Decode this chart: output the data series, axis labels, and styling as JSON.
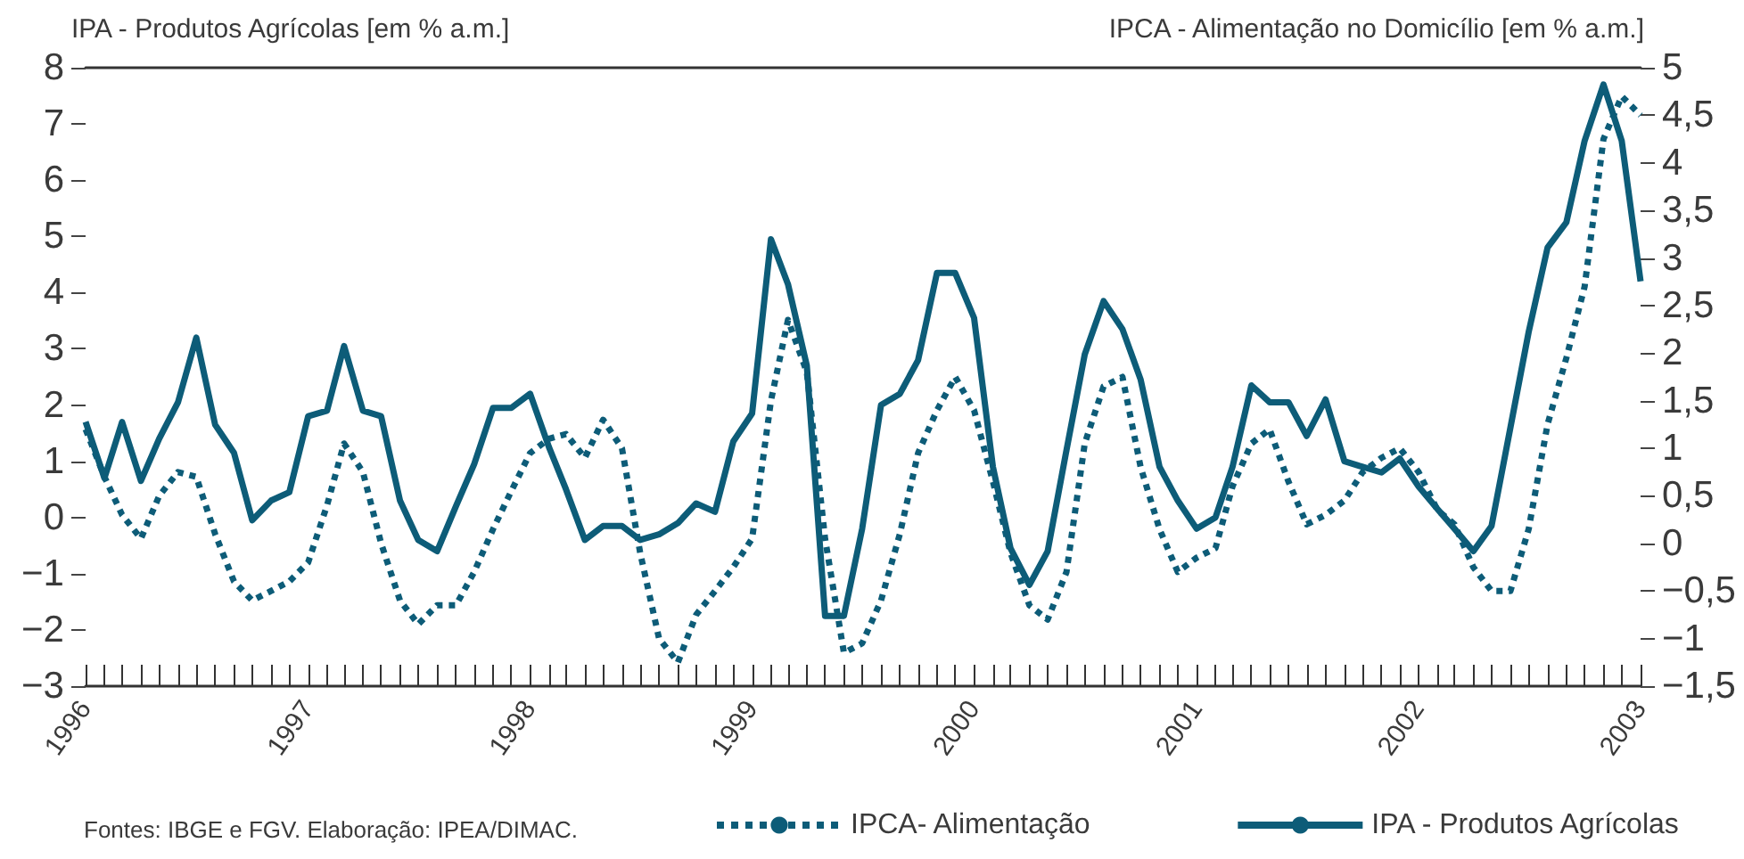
{
  "chart_data": {
    "type": "line",
    "ylabel": "IPA - Produtos Agrícolas [em % a.m.]",
    "y2label": "IPCA - Alimentação no Domicílio [em % a.m.]",
    "annotations": [
      "Fontes: IBGE e FGV. Elaboração: IPEA/DIMAC."
    ],
    "legend": "bottom",
    "marker": "none",
    "x": [
      "1996-01",
      "1996-02",
      "1996-03",
      "1996-04",
      "1996-05",
      "1996-06",
      "1996-07",
      "1996-08",
      "1996-09",
      "1996-10",
      "1996-11",
      "1996-12",
      "1997-01",
      "1997-02",
      "1997-03",
      "1997-04",
      "1997-05",
      "1997-06",
      "1997-07",
      "1997-08",
      "1997-09",
      "1997-10",
      "1997-11",
      "1997-12",
      "1998-01",
      "1998-02",
      "1998-03",
      "1998-04",
      "1998-05",
      "1998-06",
      "1998-07",
      "1998-08",
      "1998-09",
      "1998-10",
      "1998-11",
      "1998-12",
      "1999-01",
      "1999-02",
      "1999-03",
      "1999-04",
      "1999-05",
      "1999-06",
      "1999-07",
      "1999-08",
      "1999-09",
      "1999-10",
      "1999-11",
      "1999-12",
      "2000-01",
      "2000-02",
      "2000-03",
      "2000-04",
      "2000-05",
      "2000-06",
      "2000-07",
      "2000-08",
      "2000-09",
      "2000-10",
      "2000-11",
      "2000-12",
      "2001-01",
      "2001-02",
      "2001-03",
      "2001-04",
      "2001-05",
      "2001-06",
      "2001-07",
      "2001-08",
      "2001-09",
      "2001-10",
      "2001-11",
      "2001-12",
      "2002-01",
      "2002-02",
      "2002-03",
      "2002-04",
      "2002-05",
      "2002-06",
      "2002-07",
      "2002-08",
      "2002-09",
      "2002-10",
      "2002-11",
      "2002-12",
      "2003-01"
    ],
    "xlim": [
      "1996-01",
      "2003-01"
    ],
    "xticks": [
      {
        "value": "1996-01",
        "label": "1996"
      },
      {
        "value": "1997-01",
        "label": "1997"
      },
      {
        "value": "1998-01",
        "label": "1998"
      },
      {
        "value": "1999-01",
        "label": "1999"
      },
      {
        "value": "2000-01",
        "label": "2000"
      },
      {
        "value": "2001-01",
        "label": "2001"
      },
      {
        "value": "2002-01",
        "label": "2002"
      },
      {
        "value": "2003-01",
        "label": "2003"
      }
    ],
    "ylim": [
      -3,
      8
    ],
    "yticks": [
      {
        "value": -3,
        "label": "−3"
      },
      {
        "value": -2,
        "label": "−2"
      },
      {
        "value": -1,
        "label": "−1"
      },
      0,
      1,
      2,
      3,
      4,
      5,
      6,
      7,
      8
    ],
    "y2lim": [
      -1.5,
      5
    ],
    "y2ticks": [
      {
        "value": -1.5,
        "label": "−1,5"
      },
      {
        "value": -1,
        "label": "−1"
      },
      {
        "value": -0.5,
        "label": "−0,5"
      },
      0,
      {
        "value": 0.5,
        "label": "0,5"
      },
      1,
      {
        "value": 1.5,
        "label": "1,5"
      },
      2,
      {
        "value": 2.5,
        "label": "2,5"
      },
      3,
      {
        "value": 3.5,
        "label": "3,5"
      },
      4,
      {
        "value": 4.5,
        "label": "4,5"
      },
      5
    ],
    "series": [
      {
        "name": "IPCA- Alimentação",
        "color": "#0d5c78",
        "line_style": "dotted",
        "axis": "y2",
        "values": [
          1.2,
          0.7,
          0.3,
          0.05,
          0.5,
          0.75,
          0.7,
          0.1,
          -0.4,
          -0.6,
          -0.5,
          -0.4,
          -0.2,
          0.4,
          1.05,
          0.75,
          0.0,
          -0.6,
          -0.85,
          -0.65,
          -0.65,
          -0.3,
          0.15,
          0.55,
          0.95,
          1.1,
          1.15,
          0.9,
          1.3,
          1.0,
          -0.1,
          -1.0,
          -1.25,
          -0.75,
          -0.5,
          -0.25,
          0.05,
          1.5,
          2.35,
          1.8,
          0.05,
          -1.15,
          -1.05,
          -0.6,
          0.1,
          0.95,
          1.4,
          1.75,
          1.4,
          0.65,
          -0.1,
          -0.65,
          -0.8,
          -0.3,
          1.05,
          1.65,
          1.75,
          0.8,
          0.15,
          -0.3,
          -0.15,
          -0.05,
          0.6,
          1.05,
          1.2,
          0.65,
          0.2,
          0.3,
          0.45,
          0.75,
          0.9,
          1.0,
          0.75,
          0.35,
          0.2,
          -0.25,
          -0.5,
          -0.5,
          0.15,
          1.25,
          1.95,
          2.7,
          4.25,
          4.7,
          4.5
        ]
      },
      {
        "name": "IPA - Produtos Agrícolas",
        "color": "#0d5c78",
        "line_style": "solid",
        "values": [
          1.7,
          0.7,
          1.7,
          0.65,
          1.4,
          2.05,
          3.2,
          1.65,
          1.15,
          -0.05,
          0.3,
          0.45,
          1.8,
          1.9,
          3.05,
          1.9,
          1.8,
          0.3,
          -0.4,
          -0.6,
          0.2,
          0.95,
          1.95,
          1.95,
          2.2,
          1.25,
          0.5,
          -0.4,
          -0.15,
          -0.15,
          -0.4,
          -0.3,
          -0.1,
          0.25,
          0.1,
          1.35,
          1.85,
          4.95,
          4.15,
          2.7,
          -1.75,
          -1.75,
          -0.2,
          2.0,
          2.2,
          2.8,
          4.35,
          4.35,
          3.55,
          0.9,
          -0.55,
          -1.2,
          -0.6,
          1.2,
          2.9,
          3.85,
          3.35,
          2.45,
          0.9,
          0.3,
          -0.2,
          0.0,
          0.9,
          2.35,
          2.05,
          2.05,
          1.45,
          2.1,
          1.0,
          0.9,
          0.8,
          1.05,
          0.55,
          0.15,
          -0.2,
          -0.6,
          -0.15,
          1.6,
          3.3,
          4.8,
          5.25,
          6.7,
          7.7,
          6.7,
          4.2
        ]
      }
    ]
  }
}
